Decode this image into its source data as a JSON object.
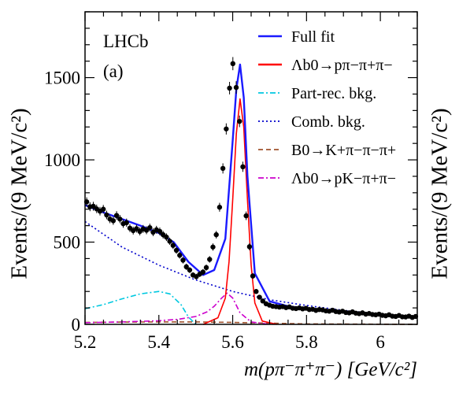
{
  "chart_data": {
    "type": "line",
    "experiment_label": "LHCb",
    "panel_label": "(a)",
    "xlabel": "m(pπ⁻π⁺π⁻) [GeV/c²]",
    "ylabel": "Events/(9 MeV/c²)",
    "xlim": [
      5.2,
      6.1
    ],
    "ylim": [
      0,
      1900
    ],
    "x_ticks": [
      "5.2",
      "5.4",
      "5.6",
      "5.8",
      "6"
    ],
    "y_ticks": [
      "0",
      "500",
      "1000",
      "1500"
    ],
    "grid": false,
    "legend_position": "top-right",
    "series": [
      {
        "name": "Full fit",
        "color": "#1a1aff",
        "style": "solid",
        "x": [
          5.2,
          5.25,
          5.3,
          5.35,
          5.4,
          5.44,
          5.48,
          5.52,
          5.55,
          5.58,
          5.6,
          5.61,
          5.62,
          5.63,
          5.64,
          5.66,
          5.7,
          5.75,
          5.8,
          5.9,
          6.0,
          6.1
        ],
        "y": [
          725,
          680,
          640,
          600,
          555,
          500,
          380,
          300,
          330,
          520,
          1120,
          1430,
          1580,
          1380,
          900,
          310,
          140,
          110,
          95,
          78,
          60,
          45
        ]
      },
      {
        "name": "Λb0→pπ−π+π−",
        "color": "#ff0000",
        "style": "solid",
        "x": [
          5.52,
          5.56,
          5.58,
          5.59,
          5.6,
          5.61,
          5.62,
          5.63,
          5.64,
          5.65,
          5.66,
          5.68,
          5.72
        ],
        "y": [
          0,
          40,
          160,
          380,
          760,
          1160,
          1370,
          1200,
          760,
          360,
          130,
          20,
          0
        ]
      },
      {
        "name": "Part-rec. bkg.",
        "color": "#00c8e0",
        "style": "dashdot",
        "x": [
          5.2,
          5.25,
          5.3,
          5.35,
          5.4,
          5.43,
          5.46,
          5.48,
          5.5
        ],
        "y": [
          95,
          120,
          155,
          185,
          200,
          185,
          120,
          45,
          0
        ]
      },
      {
        "name": "Comb. bkg.",
        "color": "#0000cc",
        "style": "dotted",
        "x": [
          5.2,
          5.3,
          5.4,
          5.5,
          5.6,
          5.7,
          5.8,
          5.9,
          6.0,
          6.1
        ],
        "y": [
          625,
          470,
          360,
          270,
          200,
          150,
          115,
          85,
          62,
          45
        ]
      },
      {
        "name": "B0→K+π−π−π+",
        "color": "#a0522d",
        "style": "dashed",
        "x": [
          5.2,
          5.3,
          5.4,
          5.5,
          5.6,
          5.7,
          5.8,
          6.1
        ],
        "y": [
          12,
          14,
          15,
          15,
          12,
          7,
          3,
          0
        ]
      },
      {
        "name": "Λb0→pK−π+π−",
        "color": "#cc00cc",
        "style": "dashdot",
        "x": [
          5.2,
          5.3,
          5.4,
          5.45,
          5.5,
          5.53,
          5.55,
          5.57,
          5.585,
          5.6,
          5.62,
          5.65,
          5.7
        ],
        "y": [
          10,
          15,
          22,
          30,
          48,
          75,
          110,
          160,
          190,
          160,
          70,
          15,
          0
        ]
      }
    ],
    "data_points": {
      "x": [
        5.2045,
        5.2135,
        5.2225,
        5.2315,
        5.2405,
        5.2495,
        5.2585,
        5.2675,
        5.2765,
        5.2855,
        5.2945,
        5.3035,
        5.3125,
        5.3215,
        5.3305,
        5.3395,
        5.3485,
        5.3575,
        5.3665,
        5.3755,
        5.3845,
        5.3935,
        5.4025,
        5.4115,
        5.4205,
        5.4295,
        5.4385,
        5.4475,
        5.4565,
        5.4655,
        5.4745,
        5.4835,
        5.4925,
        5.5015,
        5.5105,
        5.5195,
        5.5285,
        5.5375,
        5.5465,
        5.5555,
        5.5645,
        5.5735,
        5.5825,
        5.5915,
        5.6005,
        5.6095,
        5.6185,
        5.6275,
        5.6365,
        5.6455,
        5.6545,
        5.6635,
        5.6725,
        5.6815,
        5.6905,
        5.6995,
        5.7085,
        5.7175,
        5.7265,
        5.7355,
        5.7445,
        5.7535,
        5.7625,
        5.7715,
        5.7805,
        5.7895,
        5.7985,
        5.8075,
        5.8165,
        5.8255,
        5.8345,
        5.8435,
        5.8525,
        5.8615,
        5.8705,
        5.8795,
        5.8885,
        5.8975,
        5.9065,
        5.9155,
        5.9245,
        5.9335,
        5.9425,
        5.9515,
        5.9605,
        5.9695,
        5.9785,
        5.9875,
        5.9965,
        6.0055,
        6.0145,
        6.0235,
        6.0325,
        6.0415,
        6.0505,
        6.0595,
        6.0685,
        6.0775,
        6.0865,
        6.0955
      ],
      "y": [
        745,
        715,
        718,
        702,
        688,
        700,
        665,
        640,
        630,
        662,
        640,
        612,
        618,
        585,
        570,
        582,
        565,
        580,
        572,
        588,
        560,
        575,
        565,
        545,
        530,
        505,
        480,
        450,
        420,
        390,
        350,
        330,
        300,
        290,
        305,
        318,
        345,
        395,
        470,
        545,
        712,
        948,
        1188,
        1436,
        1585,
        1440,
        1234,
        958,
        660,
        472,
        294,
        200,
        165,
        142,
        125,
        117,
        110,
        108,
        105,
        108,
        102,
        106,
        98,
        96,
        100,
        94,
        98,
        90,
        92,
        85,
        90,
        88,
        82,
        80,
        86,
        78,
        75,
        80,
        72,
        70,
        76,
        68,
        65,
        70,
        62,
        66,
        60,
        58,
        62,
        55,
        52,
        58,
        50,
        48,
        54,
        46,
        45,
        50,
        42,
        48
      ],
      "errors": [
        27,
        27,
        27,
        26,
        26,
        26,
        26,
        25,
        25,
        26,
        25,
        25,
        25,
        24,
        24,
        24,
        24,
        24,
        24,
        24,
        24,
        24,
        24,
        23,
        23,
        22,
        22,
        21,
        20,
        20,
        19,
        18,
        17,
        17,
        17,
        18,
        19,
        20,
        22,
        23,
        27,
        31,
        34,
        38,
        40,
        38,
        35,
        31,
        26,
        22,
        17,
        14,
        13,
        12,
        11,
        11,
        10,
        10,
        10,
        10,
        10,
        10,
        10,
        10,
        10,
        10,
        10,
        9,
        10,
        9,
        9,
        9,
        9,
        9,
        9,
        9,
        9,
        9,
        8,
        8,
        9,
        8,
        8,
        8,
        8,
        8,
        8,
        8,
        8,
        7,
        7,
        8,
        7,
        7,
        7,
        7,
        7,
        7,
        6,
        7
      ]
    }
  }
}
